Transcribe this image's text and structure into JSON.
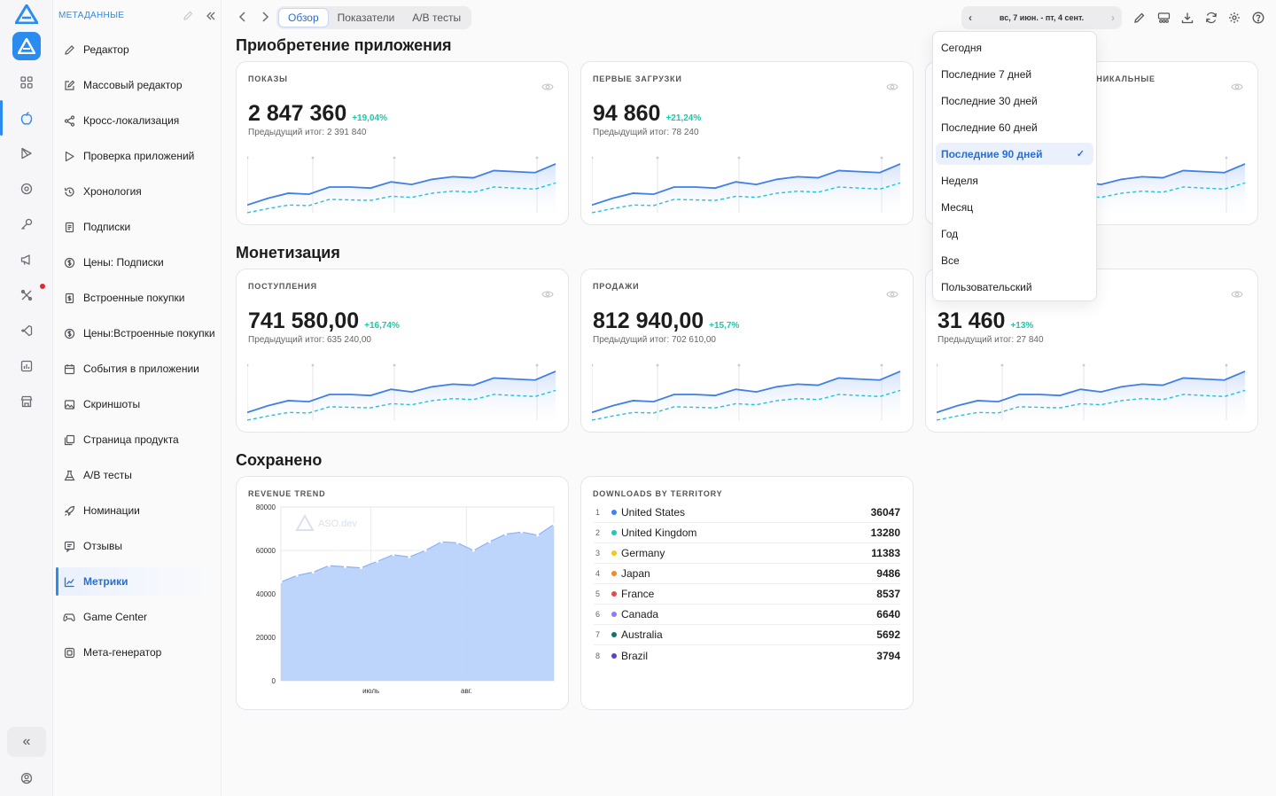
{
  "sidebar": {
    "title": "МЕТАДАННЫЕ",
    "items": [
      {
        "label": "Редактор",
        "icon": "pencil-icon"
      },
      {
        "label": "Массовый редактор",
        "icon": "edit-square-icon"
      },
      {
        "label": "Кросс-локализация",
        "icon": "share-icon"
      },
      {
        "label": "Проверка приложений",
        "icon": "play-icon"
      },
      {
        "label": "Хронология",
        "icon": "history-icon"
      },
      {
        "label": "Подписки",
        "icon": "document-icon"
      },
      {
        "label": "Цены: Подписки",
        "icon": "dollar-circle-icon"
      },
      {
        "label": "Встроенные покупки",
        "icon": "dollar-doc-icon"
      },
      {
        "label": "Цены:Встроенные покупки",
        "icon": "dollar-circle-icon"
      },
      {
        "label": "События в приложении",
        "icon": "calendar-icon"
      },
      {
        "label": "Скриншоты",
        "icon": "image-icon"
      },
      {
        "label": "Страница продукта",
        "icon": "pages-icon"
      },
      {
        "label": "A/B тесты",
        "icon": "flask-icon"
      },
      {
        "label": "Номинации",
        "icon": "rocket-icon"
      },
      {
        "label": "Отзывы",
        "icon": "review-icon"
      },
      {
        "label": "Метрики",
        "icon": "chart-icon"
      },
      {
        "label": "Game Center",
        "icon": "gamepad-icon"
      },
      {
        "label": "Мета-генератор",
        "icon": "cube-icon"
      }
    ],
    "active_item": "Метрики"
  },
  "topbar": {
    "tabs": [
      "Обзор",
      "Показатели",
      "A/B тесты"
    ],
    "active_tab": "Обзор",
    "date_range": "вс, 7 июн. - пт, 4 сент."
  },
  "sections": {
    "acquisition": "Приобретение приложения",
    "monetization": "Монетизация",
    "saved": "Сохранено"
  },
  "cards": {
    "impressions": {
      "label": "ПОКАЗЫ",
      "value": "2 847 360",
      "delta": "+19,04%",
      "prev": "Предыдущий итог: 2 391 840"
    },
    "first_downloads": {
      "label": "ПЕРВЫЕ ЗАГРУЗКИ",
      "value": "94 860",
      "delta": "+21,24%",
      "prev": "Предыдущий итог: 78 240"
    },
    "unique": {
      "label": "УНИКАЛЬНЫЕ"
    },
    "proceeds": {
      "label": "ПОСТУПЛЕНИЯ",
      "value": "741 580,00",
      "delta": "+16,74%",
      "prev": "Предыдущий итог: 635 240,00"
    },
    "sales": {
      "label": "ПРОДАЖИ",
      "value": "812 940,00",
      "delta": "+15,7%",
      "prev": "Предыдущий итог: 702 610,00"
    },
    "third": {
      "value": "31 460",
      "delta": "+13%",
      "prev": "Предыдущий итог: 27 840"
    }
  },
  "dropdown": {
    "items": [
      "Сегодня",
      "Последние 7 дней",
      "Последние 30 дней",
      "Последние 60 дней",
      "Последние 90 дней",
      "Неделя",
      "Месяц",
      "Год",
      "Все",
      "Пользовательский"
    ],
    "selected": "Последние 90 дней",
    "check": "✓"
  },
  "revenue_card": {
    "label": "REVENUE TREND",
    "watermark": "ASO.dev"
  },
  "territory_card": {
    "label": "DOWNLOADS BY TERRITORY",
    "rows": [
      {
        "rank": "1",
        "name": "United States",
        "value": "36047",
        "color": "#3b82f6"
      },
      {
        "rank": "2",
        "name": "United Kingdom",
        "value": "13280",
        "color": "#22c7b8"
      },
      {
        "rank": "3",
        "name": "Germany",
        "value": "11383",
        "color": "#f5c518"
      },
      {
        "rank": "4",
        "name": "Japan",
        "value": "9486",
        "color": "#f08a24"
      },
      {
        "rank": "5",
        "name": "France",
        "value": "8537",
        "color": "#e5484d"
      },
      {
        "rank": "6",
        "name": "Canada",
        "value": "6640",
        "color": "#8b7cf6"
      },
      {
        "rank": "7",
        "name": "Australia",
        "value": "5692",
        "color": "#0f766e"
      },
      {
        "rank": "8",
        "name": "Brazil",
        "value": "3794",
        "color": "#5b3fd1"
      }
    ]
  },
  "colors": {
    "accent": "#2b8cf0",
    "delta": "#1fc6a8",
    "area": "#b7d0fb"
  },
  "chart_data": {
    "type": "area",
    "title": "REVENUE TREND",
    "x_tick_labels": [
      "июль",
      "авг."
    ],
    "y_ticks": [
      "80000",
      "60000",
      "40000",
      "20000",
      "0"
    ],
    "ylim": [
      0,
      80000
    ],
    "grid": true,
    "values": [
      45500,
      48500,
      50000,
      53000,
      52500,
      52000,
      55000,
      58000,
      57000,
      60000,
      64000,
      63500,
      60000,
      64000,
      67500,
      68500,
      67000,
      72000
    ]
  }
}
